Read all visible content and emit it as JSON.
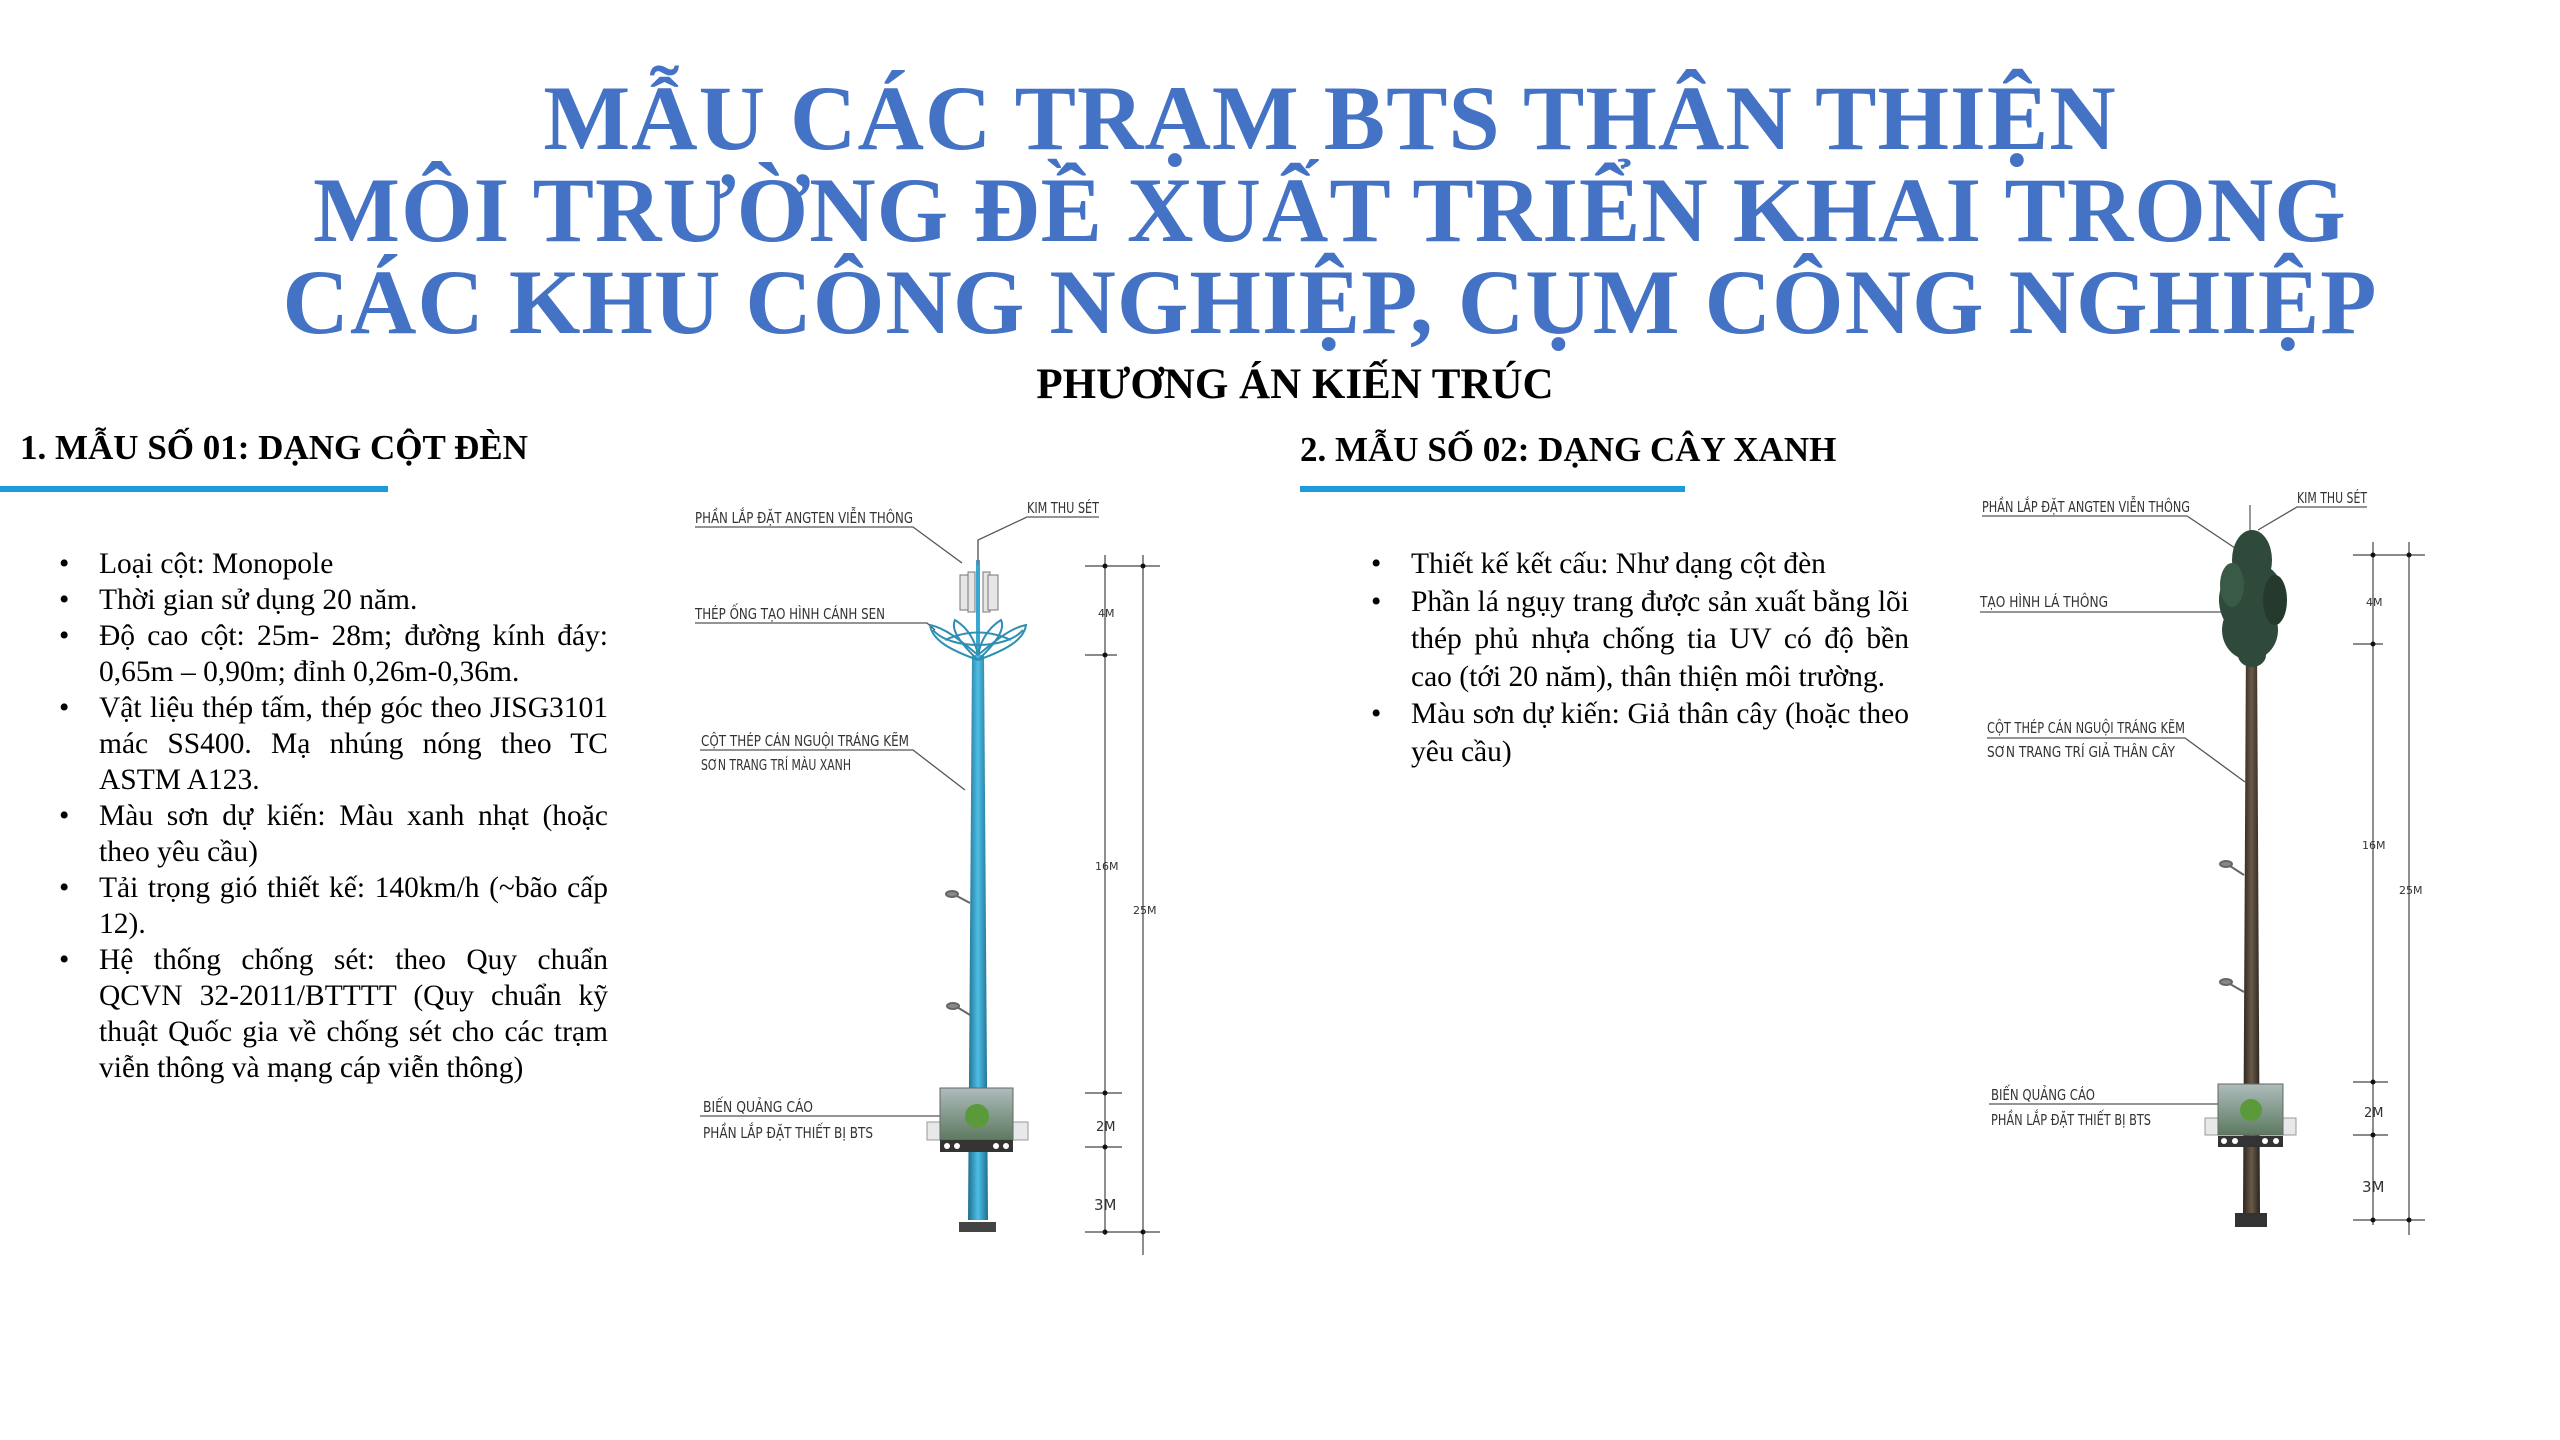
{
  "title": {
    "line1": "MẪU CÁC TRẠM BTS THÂN THIỆN",
    "line2": "MÔI TRƯỜNG ĐỀ XUẤT TRIỂN KHAI TRONG",
    "line3": "CÁC KHU CÔNG NGHIỆP, CỤM CÔNG NGHIỆP",
    "color": "#4472C4"
  },
  "subtitle": "PHƯƠNG ÁN KIẾN TRÚC",
  "section1": {
    "heading": "1. MẪU SỐ 01: DẠNG CỘT ĐÈN",
    "bullets": [
      "Loại cột: Monopole",
      "Thời gian sử dụng 20 năm.",
      "Độ cao cột: 25m- 28m; đường kính đáy: 0,65m – 0,90m; đỉnh 0,26m-0,36m.",
      "Vật liệu thép tấm, thép góc theo JISG3101 mác SS400. Mạ nhúng nóng theo TC ASTM A123.",
      "Màu sơn dự kiến: Màu xanh nhạt (hoặc theo yêu cầu)",
      " Tải trọng gió thiết kế: 140km/h (~bão cấp 12).",
      "Hệ thống chống sét: theo Quy chuẩn QCVN 32-2011/BTTTT (Quy chuẩn kỹ thuật Quốc gia về chống sét cho các trạm viễn thông và mạng cáp viễn thông)"
    ],
    "diagram": {
      "label_antenna": "PHẦN LẮP ĐẶT ANGTEN VIỄN THÔNG",
      "label_lightning": "KIM THU SÉT",
      "label_lotus": "THÉP ỐNG TẠO HÌNH CÁNH SEN",
      "label_pole_1": "CỘT THÉP CÁN NGUỘI TRÁNG KẼM",
      "label_pole_2": "SƠN TRANG TRÍ MÀU XANH",
      "label_billboard": "BIẾN QUẢNG CÁO",
      "label_equipment": "PHẦN LẮP ĐẶT THIẾT BỊ BTS",
      "dim_top": "4M",
      "dim_mid": "16M",
      "dim_total": "25M",
      "dim_board": "2M",
      "dim_base": "3M",
      "pole_color": "#3BA7D0"
    }
  },
  "section2": {
    "heading": "2. MẪU SỐ 02: DẠNG CÂY XANH",
    "bullets": [
      "Thiết kế kết cấu: Như dạng cột đèn",
      "Phần lá ngụy trang được sản xuất bằng lõi thép phủ nhựa chống tia UV có độ bền cao (tới 20 năm), thân thiện môi trường.",
      "Màu sơn dự kiến: Giả thân cây (hoặc theo yêu cầu)"
    ],
    "diagram": {
      "label_antenna": "PHẦN LẮP ĐẶT ANGTEN VIỄN THÔNG",
      "label_lightning": "KIM THU SÉT",
      "label_foliage": "TẠO HÌNH LÁ THÔNG",
      "label_pole_1": "CỘT THÉP CÁN NGUỘI TRÁNG KẼM",
      "label_pole_2": "SƠN TRANG TRÍ GIẢ THÂN CÂY",
      "label_billboard": "BIẾN QUẢNG CÁO",
      "label_equipment": "PHẦN LẮP ĐẶT THIẾT BỊ BTS",
      "dim_top": "4M",
      "dim_mid": "16M",
      "dim_total": "25M",
      "dim_board": "2M",
      "dim_base": "3M",
      "trunk_color": "#4A3F33",
      "foliage_color": "#2F4A3A"
    }
  },
  "accent_color": "#1E9BDB"
}
